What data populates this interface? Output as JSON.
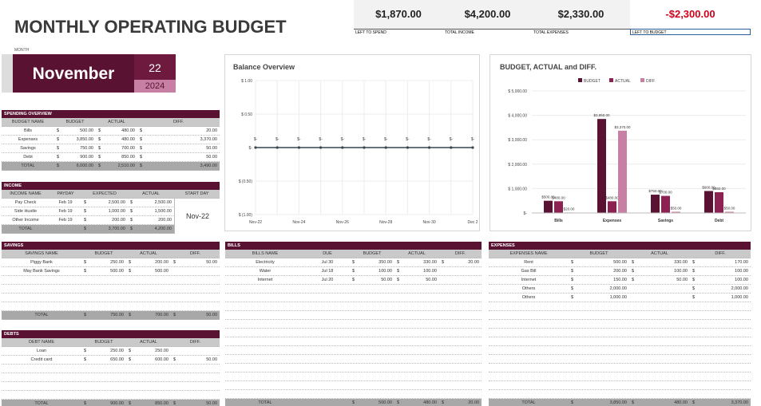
{
  "title": "MONTHLY OPERATING BUDGET",
  "summary": [
    {
      "value": "$1,870.00",
      "label": "LEFT TO SPEND"
    },
    {
      "value": "$4,200.00",
      "label": "TOTAL INCOME"
    },
    {
      "value": "$2,330.00",
      "label": "TOTAL EXPENSES"
    },
    {
      "value": "-$2,300.00",
      "label": "LEFT TO BUDGET"
    }
  ],
  "month": {
    "label": "MONTH",
    "name": "November",
    "day": "22",
    "year": "2024"
  },
  "currency": "$",
  "tables": {
    "spending": {
      "title": "SPENDING OVERVIEW",
      "columns": [
        "BUDGET NAME",
        "BUDGET",
        "ACTUAL",
        "DIFF."
      ],
      "rows": [
        [
          "Bills",
          "500.00",
          "480.00",
          "20.00"
        ],
        [
          "Expenses",
          "3,850.00",
          "480.00",
          "3,370.00"
        ],
        [
          "Savings",
          "750.00",
          "700.00",
          "50.00"
        ],
        [
          "Debt",
          "900.00",
          "850.00",
          "50.00"
        ]
      ],
      "total": [
        "TOTAL",
        "6,000.00",
        "2,510.00",
        "3,490.00"
      ]
    },
    "income": {
      "title": "INCOME",
      "columns": [
        "INCOME NAME",
        "PAYDAY",
        "EXPECTED",
        "ACTUAL",
        "START DAY"
      ],
      "rows": [
        [
          "Pay Check",
          "Feb 19",
          "2,500.00",
          "2,500.00"
        ],
        [
          "Side Hustle",
          "Feb 19",
          "1,000.00",
          "1,500.00"
        ],
        [
          "Other Income",
          "Feb 19",
          "200.00",
          "200.00"
        ]
      ],
      "total": [
        "TOTAL",
        null,
        "3,700.00",
        "4,200.00"
      ],
      "start_day": "Nov-22"
    },
    "savings": {
      "title": "SAVINGS",
      "columns": [
        "SAVINGS NAME",
        "BUDGET",
        "ACTUAL",
        "DIFF."
      ],
      "rows": [
        [
          "Piggy Bank",
          "250.00",
          "200.00",
          "50.00"
        ],
        [
          "May Bank Savings",
          "500.00",
          "500.00",
          null
        ]
      ],
      "total": [
        "TOTAL",
        "750.00",
        "700.00",
        "50.00"
      ]
    },
    "debts": {
      "title": "DEBTS",
      "columns": [
        "DEBT NAME",
        "BUDGET",
        "ACTUAL",
        "DIFF."
      ],
      "rows": [
        [
          "Loan",
          "250.00",
          "250.00",
          null
        ],
        [
          "Credit card",
          "650.00",
          "600.00",
          "50.00"
        ]
      ],
      "total": [
        "TOTAL",
        "900.00",
        "850.00",
        "50.00"
      ]
    },
    "bills": {
      "title": "BILLS",
      "columns": [
        "BILLS NAME",
        "DUE",
        "BUDGET",
        "ACTUAL",
        "DIFF."
      ],
      "rows": [
        [
          "Electricity",
          "Jul 30",
          "350.00",
          "330.00",
          "20.00"
        ],
        [
          "Water",
          "Jul 18",
          "100.00",
          "100.00",
          null
        ],
        [
          "Internet",
          "Jul 20",
          "50.00",
          "50.00",
          null
        ]
      ],
      "total": [
        "TOTAL",
        null,
        "500.00",
        "480.00",
        "20.00"
      ]
    },
    "expenses": {
      "title": "EXPENSES",
      "columns": [
        "EXPENSES NAME",
        "BUDGET",
        "ACTUAL",
        "DIFF."
      ],
      "rows": [
        [
          "Rent",
          "500.00",
          "330.00",
          "170.00"
        ],
        [
          "Gas Bill",
          "200.00",
          "100.00",
          "100.00"
        ],
        [
          "Internet",
          "150.00",
          "50.00",
          "100.00"
        ],
        [
          "Others",
          "2,000.00",
          null,
          "2,000.00"
        ],
        [
          "Others",
          "1,000.00",
          null,
          "1,000.00"
        ]
      ],
      "total": [
        "TOTAL",
        "3,850.00",
        "480.00",
        "3,370.00"
      ]
    }
  },
  "chart_data": [
    {
      "type": "line",
      "title": "Balance Overview",
      "categories": [
        "Nov-22",
        null,
        "Nov-24",
        null,
        "Nov-26",
        null,
        "Nov-28",
        null,
        "Nov-30",
        null,
        "Dec 2"
      ],
      "values": [
        0,
        0,
        0,
        0,
        0,
        0,
        0,
        0,
        0,
        0,
        0
      ],
      "value_labels": [
        "$-",
        "$-",
        "$-",
        "$-",
        "$-",
        "$-",
        "$-",
        "$-",
        "$-",
        "$-",
        "$-"
      ],
      "color": "#37474f",
      "ylim": [
        -1,
        1
      ],
      "yticks": [
        {
          "value": 1,
          "label": "$ 1.00"
        },
        {
          "value": 0.5,
          "label": "$ 0.50"
        },
        {
          "value": 0,
          "label": "$-"
        },
        {
          "value": -0.5,
          "label": "$ (0.50)"
        },
        {
          "value": -1,
          "label": "$ (1.00)"
        }
      ],
      "grid": true
    },
    {
      "type": "bar",
      "title": "BUDGET, ACTUAL and DIFF.",
      "categories": [
        "Bills",
        "Expenses",
        "Savings",
        "Debt"
      ],
      "series": [
        {
          "name": "BUDGET",
          "color": "#5a1232",
          "values": [
            500,
            3850,
            750,
            900
          ],
          "value_labels": [
            "$500.00",
            "$3,850.00",
            "$750.00",
            "$900.00"
          ]
        },
        {
          "name": "ACTUAL",
          "color": "#8b2252",
          "values": [
            480,
            480,
            700,
            850
          ],
          "value_labels": [
            "$480.00",
            "$480.00",
            "$700.00",
            "$850.00"
          ]
        },
        {
          "name": "DIFF",
          "color": "#c77fa3",
          "values": [
            20,
            3370,
            50,
            50
          ],
          "value_labels": [
            "$20.00",
            "$3,370.00",
            "$50.00",
            "$50.00"
          ]
        }
      ],
      "ylim": [
        0,
        5000
      ],
      "yticks": [
        {
          "value": 0,
          "label": "$-"
        },
        {
          "value": 1000,
          "label": "$ 1,000.00"
        },
        {
          "value": 2000,
          "label": "$ 2,000.00"
        },
        {
          "value": 3000,
          "label": "$ 3,000.00"
        },
        {
          "value": 4000,
          "label": "$ 4,000.00"
        },
        {
          "value": 5000,
          "label": "$ 5,000.00"
        }
      ],
      "grid": true,
      "legend": "top"
    }
  ]
}
